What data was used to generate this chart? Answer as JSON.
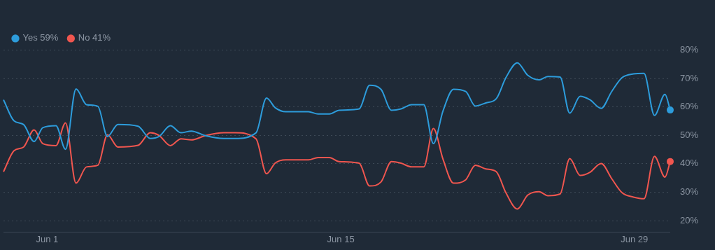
{
  "chart_data": {
    "type": "line",
    "legend": "top left",
    "grid": "y",
    "line_style": "solid",
    "xlim": [
      "--05-29T22:00",
      "--06-30T17:00"
    ],
    "xticks": [
      {
        "value": "--06-01",
        "label": "Jun 1"
      },
      {
        "value": "--06-15",
        "label": "Jun 15"
      },
      {
        "value": "--06-29",
        "label": "Jun 29"
      }
    ],
    "x": [
      "--05-29T22:00",
      "--05-30T10:00",
      "--05-30T21:00",
      "--05-31T09:00",
      "--05-31T19:00",
      "--06-01T10:00",
      "--06-01T21:00",
      "--06-02T09:00",
      "--06-02T21:00",
      "--06-03T10:00",
      "--06-03T21:00",
      "--06-04T09:00",
      "--06-05T08:00",
      "--06-05T22:00",
      "--06-06T08:00",
      "--06-06T21:00",
      "--06-07T09:00",
      "--06-07T21:00",
      "--06-08T13:00",
      "--06-09T10:00",
      "--06-09T23:00",
      "--06-10T23:00",
      "--06-11T11:00",
      "--06-11T21:00",
      "--06-12T09:00",
      "--06-13T11:00",
      "--06-13T22:00",
      "--06-14T11:00",
      "--06-14T22:00",
      "--06-15T21:00",
      "--06-16T09:00",
      "--06-16T22:00",
      "--06-17T10:00",
      "--06-17T21:00",
      "--06-18T09:00",
      "--06-18T23:00",
      "--06-19T10:00",
      "--06-19T21:00",
      "--06-20T09:00",
      "--06-20T23:00",
      "--06-21T10:00",
      "--06-21T22:00",
      "--06-22T10:00",
      "--06-22T21:00",
      "--06-23T10:00",
      "--06-23T22:00",
      "--06-24T11:00",
      "--06-24T21:00",
      "--06-25T11:00",
      "--06-25T22:00",
      "--06-26T10:00",
      "--06-26T21:00",
      "--06-27T10:00",
      "--06-27T22:00",
      "--06-28T10:00",
      "--06-28T23:00",
      "--06-29T11:00",
      "--06-29T23:00",
      "--06-30T11:00",
      "--06-30T17:00"
    ],
    "ylim": [
      16,
      80
    ],
    "yticks": [
      {
        "value": 20,
        "label": "20%"
      },
      {
        "value": 30,
        "label": "30%"
      },
      {
        "value": 40,
        "label": "40%"
      },
      {
        "value": 50,
        "label": "50%"
      },
      {
        "value": 60,
        "label": "60%"
      },
      {
        "value": 70,
        "label": "70%"
      },
      {
        "value": 80,
        "label": "80%"
      }
    ],
    "series": [
      {
        "name": "Yes 59%",
        "color": "#2d9cdb",
        "values": [
          62.5,
          55.1,
          53.8,
          47.8,
          52.7,
          53.4,
          45.1,
          66.3,
          60.8,
          60.2,
          49.6,
          53.8,
          53.2,
          48.9,
          49.6,
          53.4,
          50.9,
          51.5,
          49.9,
          48.9,
          48.9,
          50.9,
          63.1,
          59.7,
          58.3,
          58.3,
          57.5,
          57.5,
          58.8,
          59.3,
          67.6,
          66.2,
          58.8,
          59.3,
          60.8,
          60.8,
          47.1,
          58.6,
          66.2,
          65.4,
          60.3,
          61.4,
          62.9,
          70.3,
          75.5,
          71.1,
          69.5,
          70.7,
          70.5,
          57.8,
          63.7,
          62.5,
          59.5,
          65.4,
          70.3,
          71.6,
          71.8,
          57.0,
          64.4,
          58.9
        ]
      },
      {
        "name": "No 41%",
        "color": "#f0564f",
        "values": [
          37.2,
          44.6,
          45.9,
          51.9,
          47.1,
          46.4,
          54.4,
          33.2,
          38.9,
          39.5,
          50.2,
          45.9,
          46.5,
          50.9,
          50.0,
          46.4,
          48.8,
          48.4,
          49.9,
          50.9,
          50.9,
          48.8,
          36.5,
          40.3,
          41.4,
          41.4,
          42.2,
          42.2,
          40.8,
          40.2,
          32.2,
          33.6,
          40.8,
          40.2,
          38.9,
          38.9,
          52.4,
          41.6,
          33.2,
          34.4,
          39.5,
          38.2,
          37.2,
          29.8,
          24.1,
          29.0,
          30.2,
          28.8,
          29.4,
          41.8,
          35.9,
          37.0,
          40.1,
          34.8,
          29.8,
          28.3,
          27.7,
          42.6,
          35.3,
          40.8
        ]
      }
    ]
  }
}
